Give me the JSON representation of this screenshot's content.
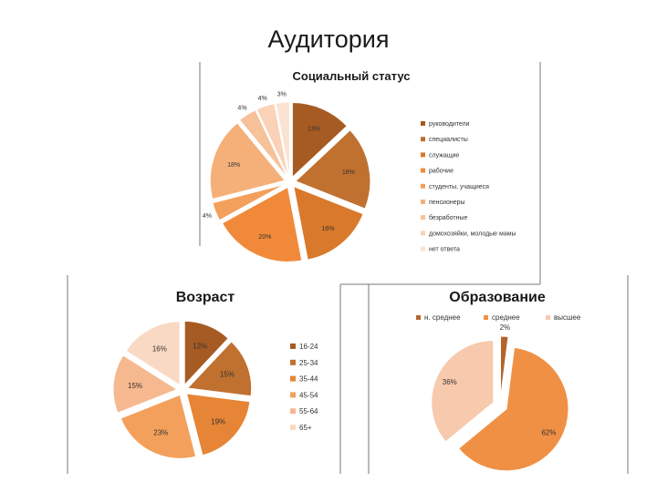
{
  "slide_title": "Аудитория",
  "chart_data": [
    {
      "type": "pie",
      "title": "Социальный статус",
      "categories": [
        "руководители",
        "специалисты",
        "служащие",
        "рабочие",
        "студенты, учащиеся",
        "пенсионеры",
        "безработные",
        "домохозяйки, молодые мамы",
        "нет ответа"
      ],
      "values": [
        13,
        18,
        16,
        20,
        4,
        18,
        4,
        4,
        3
      ],
      "labels": [
        "13%",
        "18%",
        "16%",
        "20%",
        "4%",
        "18%",
        "4%",
        "4%",
        "3%"
      ],
      "colors": [
        "#a65b23",
        "#c0702f",
        "#d9792b",
        "#f08a3a",
        "#f3a05c",
        "#f5b07a",
        "#f7c19a",
        "#f9d2b8",
        "#fbe3d4"
      ],
      "legend": "right"
    },
    {
      "type": "pie",
      "title": "Возраст",
      "categories": [
        "16-24",
        "25-34",
        "35-44",
        "45-54",
        "55-64",
        "65+"
      ],
      "values": [
        12,
        15,
        19,
        23,
        15,
        16
      ],
      "labels": [
        "12%",
        "15%",
        "19%",
        "23%",
        "15%",
        "16%"
      ],
      "colors": [
        "#a65b23",
        "#c0702f",
        "#e68535",
        "#f3a05c",
        "#f6b88f",
        "#fad9c4"
      ],
      "legend": "right"
    },
    {
      "type": "pie",
      "title": "Образование",
      "categories": [
        "н. среднее",
        "среднее",
        "высшее"
      ],
      "values": [
        2,
        62,
        36
      ],
      "labels": [
        "2%",
        "62%",
        "36%"
      ],
      "colors": [
        "#b5652a",
        "#f09044",
        "#f7c9ad"
      ],
      "legend": "top"
    }
  ]
}
